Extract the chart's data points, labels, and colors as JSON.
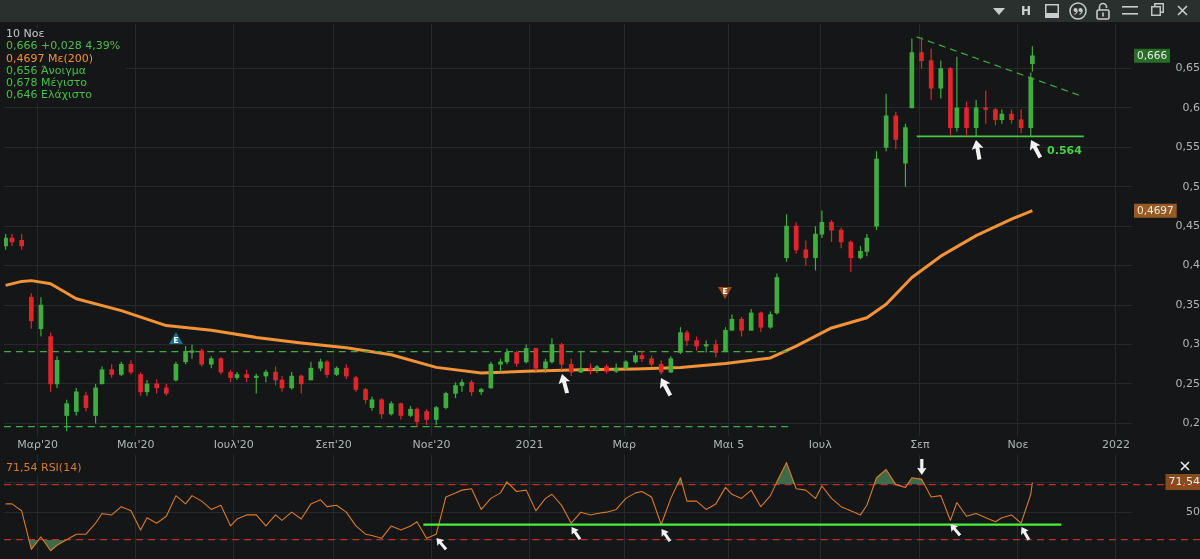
{
  "chart_data": [
    {
      "type": "candlestick",
      "x": [
        "2020-02-10",
        "2020-02-14",
        "2020-02-20",
        "2020-02-26",
        "2020-03-03",
        "2020-03-09",
        "2020-03-13",
        "2020-03-19",
        "2020-03-25",
        "2020-03-31",
        "2020-04-06",
        "2020-04-10",
        "2020-04-16",
        "2020-04-22",
        "2020-04-28",
        "2020-05-04",
        "2020-05-08",
        "2020-05-14",
        "2020-05-20",
        "2020-05-26",
        "2020-06-01",
        "2020-06-05",
        "2020-06-11",
        "2020-06-17",
        "2020-06-23",
        "2020-06-29",
        "2020-07-03",
        "2020-07-09",
        "2020-07-15",
        "2020-07-21",
        "2020-07-27",
        "2020-07-31",
        "2020-08-06",
        "2020-08-12",
        "2020-08-18",
        "2020-08-24",
        "2020-08-28",
        "2020-09-03",
        "2020-09-09",
        "2020-09-15",
        "2020-09-21",
        "2020-09-25",
        "2020-10-01",
        "2020-10-07",
        "2020-10-13",
        "2020-10-19",
        "2020-10-23",
        "2020-10-29",
        "2020-11-04",
        "2020-11-10",
        "2020-11-16",
        "2020-11-20",
        "2020-11-26",
        "2020-12-02",
        "2020-12-08",
        "2020-12-14",
        "2020-12-18",
        "2020-12-24",
        "2020-12-30",
        "2021-01-05",
        "2021-01-11",
        "2021-01-15",
        "2021-01-21",
        "2021-01-27",
        "2021-02-02",
        "2021-02-08",
        "2021-02-12",
        "2021-02-18",
        "2021-02-24",
        "2021-03-02",
        "2021-03-08",
        "2021-03-12",
        "2021-03-18",
        "2021-03-24",
        "2021-03-30",
        "2021-04-05",
        "2021-04-09",
        "2021-04-15",
        "2021-04-21",
        "2021-04-27",
        "2021-05-03",
        "2021-05-07",
        "2021-05-13",
        "2021-05-19",
        "2021-05-25",
        "2021-05-31",
        "2021-06-04",
        "2021-06-10",
        "2021-06-16",
        "2021-06-22",
        "2021-06-28",
        "2021-07-02",
        "2021-07-08",
        "2021-07-14",
        "2021-07-20",
        "2021-07-26",
        "2021-07-30",
        "2021-08-05",
        "2021-08-11",
        "2021-08-17",
        "2021-08-23",
        "2021-08-27",
        "2021-09-02",
        "2021-09-08",
        "2021-09-14",
        "2021-09-20",
        "2021-09-24",
        "2021-09-30",
        "2021-10-06",
        "2021-10-12",
        "2021-10-18",
        "2021-10-22",
        "2021-10-28",
        "2021-11-03",
        "2021-11-09",
        "2021-11-10"
      ],
      "ohlc": [
        [
          0.425,
          0.44,
          0.42,
          0.435
        ],
        [
          0.435,
          0.44,
          0.425,
          0.43
        ],
        [
          0.432,
          0.44,
          0.42,
          0.425
        ],
        [
          0.36,
          0.365,
          0.32,
          0.33
        ],
        [
          0.32,
          0.36,
          0.31,
          0.35
        ],
        [
          0.31,
          0.315,
          0.24,
          0.25
        ],
        [
          0.25,
          0.285,
          0.245,
          0.28
        ],
        [
          0.21,
          0.23,
          0.19,
          0.225
        ],
        [
          0.215,
          0.245,
          0.21,
          0.24
        ],
        [
          0.235,
          0.24,
          0.215,
          0.22
        ],
        [
          0.21,
          0.25,
          0.2,
          0.245
        ],
        [
          0.25,
          0.272,
          0.25,
          0.268
        ],
        [
          0.268,
          0.275,
          0.258,
          0.262
        ],
        [
          0.262,
          0.278,
          0.26,
          0.275
        ],
        [
          0.275,
          0.28,
          0.262,
          0.265
        ],
        [
          0.262,
          0.265,
          0.235,
          0.24
        ],
        [
          0.24,
          0.255,
          0.235,
          0.25
        ],
        [
          0.25,
          0.256,
          0.238,
          0.245
        ],
        [
          0.245,
          0.25,
          0.235,
          0.238
        ],
        [
          0.255,
          0.278,
          0.253,
          0.275
        ],
        [
          0.278,
          0.298,
          0.275,
          0.29
        ],
        [
          0.29,
          0.3,
          0.282,
          0.292
        ],
        [
          0.292,
          0.295,
          0.272,
          0.275
        ],
        [
          0.275,
          0.285,
          0.27,
          0.282
        ],
        [
          0.282,
          0.284,
          0.262,
          0.265
        ],
        [
          0.265,
          0.268,
          0.252,
          0.258
        ],
        [
          0.258,
          0.265,
          0.255,
          0.262
        ],
        [
          0.262,
          0.268,
          0.252,
          0.258
        ],
        [
          0.258,
          0.263,
          0.238,
          0.26
        ],
        [
          0.26,
          0.268,
          0.252,
          0.265
        ],
        [
          0.265,
          0.272,
          0.248,
          0.255
        ],
        [
          0.255,
          0.26,
          0.24,
          0.245
        ],
        [
          0.245,
          0.265,
          0.243,
          0.26
        ],
        [
          0.26,
          0.262,
          0.238,
          0.25
        ],
        [
          0.255,
          0.278,
          0.255,
          0.27
        ],
        [
          0.27,
          0.282,
          0.266,
          0.278
        ],
        [
          0.278,
          0.28,
          0.258,
          0.262
        ],
        [
          0.262,
          0.272,
          0.26,
          0.27
        ],
        [
          0.27,
          0.275,
          0.256,
          0.26
        ],
        [
          0.258,
          0.26,
          0.24,
          0.243
        ],
        [
          0.243,
          0.245,
          0.225,
          0.23
        ],
        [
          0.22,
          0.234,
          0.216,
          0.23
        ],
        [
          0.23,
          0.232,
          0.206,
          0.212
        ],
        [
          0.212,
          0.228,
          0.21,
          0.225
        ],
        [
          0.225,
          0.226,
          0.205,
          0.21
        ],
        [
          0.21,
          0.222,
          0.208,
          0.218
        ],
        [
          0.218,
          0.22,
          0.196,
          0.202
        ],
        [
          0.215,
          0.218,
          0.198,
          0.205
        ],
        [
          0.205,
          0.222,
          0.198,
          0.22
        ],
        [
          0.22,
          0.24,
          0.218,
          0.238
        ],
        [
          0.238,
          0.252,
          0.232,
          0.248
        ],
        [
          0.248,
          0.256,
          0.24,
          0.252
        ],
        [
          0.252,
          0.255,
          0.235,
          0.24
        ],
        [
          0.24,
          0.245,
          0.236,
          0.243
        ],
        [
          0.245,
          0.278,
          0.244,
          0.275
        ],
        [
          0.275,
          0.282,
          0.265,
          0.278
        ],
        [
          0.278,
          0.295,
          0.275,
          0.29
        ],
        [
          0.29,
          0.292,
          0.272,
          0.276
        ],
        [
          0.278,
          0.3,
          0.276,
          0.295
        ],
        [
          0.295,
          0.296,
          0.266,
          0.27
        ],
        [
          0.27,
          0.282,
          0.264,
          0.278
        ],
        [
          0.278,
          0.308,
          0.276,
          0.3
        ],
        [
          0.3,
          0.302,
          0.268,
          0.275
        ],
        [
          0.275,
          0.282,
          0.26,
          0.265
        ],
        [
          0.265,
          0.292,
          0.264,
          0.27
        ],
        [
          0.27,
          0.276,
          0.262,
          0.268
        ],
        [
          0.268,
          0.274,
          0.264,
          0.272
        ],
        [
          0.272,
          0.275,
          0.263,
          0.266
        ],
        [
          0.266,
          0.276,
          0.264,
          0.27
        ],
        [
          0.27,
          0.28,
          0.268,
          0.278
        ],
        [
          0.278,
          0.29,
          0.276,
          0.286
        ],
        [
          0.286,
          0.292,
          0.278,
          0.282
        ],
        [
          0.282,
          0.286,
          0.272,
          0.275
        ],
        [
          0.275,
          0.28,
          0.262,
          0.265
        ],
        [
          0.265,
          0.285,
          0.264,
          0.282
        ],
        [
          0.29,
          0.322,
          0.288,
          0.315
        ],
        [
          0.315,
          0.318,
          0.298,
          0.305
        ],
        [
          0.305,
          0.31,
          0.292,
          0.298
        ],
        [
          0.298,
          0.305,
          0.29,
          0.3
        ],
        [
          0.3,
          0.306,
          0.284,
          0.29
        ],
        [
          0.292,
          0.322,
          0.29,
          0.318
        ],
        [
          0.318,
          0.338,
          0.318,
          0.332
        ],
        [
          0.332,
          0.335,
          0.31,
          0.318
        ],
        [
          0.318,
          0.345,
          0.318,
          0.34
        ],
        [
          0.34,
          0.342,
          0.316,
          0.322
        ],
        [
          0.322,
          0.342,
          0.32,
          0.338
        ],
        [
          0.34,
          0.39,
          0.338,
          0.385
        ],
        [
          0.41,
          0.465,
          0.405,
          0.45
        ],
        [
          0.45,
          0.455,
          0.415,
          0.42
        ],
        [
          0.42,
          0.432,
          0.4,
          0.41
        ],
        [
          0.41,
          0.45,
          0.394,
          0.44
        ],
        [
          0.44,
          0.47,
          0.435,
          0.455
        ],
        [
          0.455,
          0.458,
          0.43,
          0.445
        ],
        [
          0.445,
          0.448,
          0.422,
          0.43
        ],
        [
          0.43,
          0.432,
          0.392,
          0.41
        ],
        [
          0.41,
          0.425,
          0.408,
          0.418
        ],
        [
          0.418,
          0.44,
          0.412,
          0.435
        ],
        [
          0.45,
          0.545,
          0.445,
          0.535
        ],
        [
          0.55,
          0.618,
          0.545,
          0.59
        ],
        [
          0.59,
          0.595,
          0.548,
          0.56
        ],
        [
          0.53,
          0.58,
          0.5,
          0.575
        ],
        [
          0.6,
          0.688,
          0.6,
          0.67
        ],
        [
          0.67,
          0.69,
          0.65,
          0.66
        ],
        [
          0.66,
          0.675,
          0.61,
          0.625
        ],
        [
          0.625,
          0.66,
          0.612,
          0.65
        ],
        [
          0.65,
          0.652,
          0.565,
          0.575
        ],
        [
          0.575,
          0.665,
          0.57,
          0.6
        ],
        [
          0.6,
          0.608,
          0.565,
          0.575
        ],
        [
          0.575,
          0.61,
          0.564,
          0.6
        ],
        [
          0.6,
          0.622,
          0.58,
          0.598
        ],
        [
          0.598,
          0.6,
          0.578,
          0.585
        ],
        [
          0.585,
          0.598,
          0.58,
          0.592
        ],
        [
          0.592,
          0.598,
          0.58,
          0.585
        ],
        [
          0.585,
          0.598,
          0.568,
          0.575
        ],
        [
          0.575,
          0.645,
          0.564,
          0.638
        ],
        [
          0.656,
          0.678,
          0.646,
          0.666
        ]
      ],
      "colors": [
        "#3fae3f",
        "#e0262b",
        "#e0262b",
        "#e0262b",
        "#3fae3f",
        "#e0262b",
        "#3fae3f",
        "#3fae3f",
        "#3fae3f",
        "#e0262b",
        "#3fae3f",
        "#3fae3f",
        "#e0262b",
        "#3fae3f",
        "#e0262b",
        "#e0262b",
        "#3fae3f",
        "#e0262b",
        "#e0262b",
        "#3fae3f",
        "#3fae3f",
        "#3fae3f",
        "#e0262b",
        "#3fae3f",
        "#e0262b",
        "#e0262b",
        "#3fae3f",
        "#e0262b",
        "#3fae3f",
        "#3fae3f",
        "#e0262b",
        "#e0262b",
        "#3fae3f",
        "#e0262b",
        "#3fae3f",
        "#3fae3f",
        "#e0262b",
        "#3fae3f",
        "#e0262b",
        "#e0262b",
        "#e0262b",
        "#3fae3f",
        "#e0262b",
        "#3fae3f",
        "#e0262b",
        "#3fae3f",
        "#e0262b",
        "#e0262b",
        "#3fae3f",
        "#3fae3f",
        "#3fae3f",
        "#3fae3f",
        "#e0262b",
        "#3fae3f",
        "#3fae3f",
        "#3fae3f",
        "#3fae3f",
        "#e0262b",
        "#3fae3f",
        "#e0262b",
        "#3fae3f",
        "#3fae3f",
        "#e0262b",
        "#e0262b",
        "#3fae3f",
        "#e0262b",
        "#3fae3f",
        "#e0262b",
        "#3fae3f",
        "#3fae3f",
        "#3fae3f",
        "#e0262b",
        "#e0262b",
        "#e0262b",
        "#3fae3f",
        "#3fae3f",
        "#e0262b",
        "#e0262b",
        "#3fae3f",
        "#e0262b",
        "#3fae3f",
        "#3fae3f",
        "#e0262b",
        "#3fae3f",
        "#e0262b",
        "#3fae3f",
        "#3fae3f",
        "#3fae3f",
        "#e0262b",
        "#e0262b",
        "#3fae3f",
        "#3fae3f",
        "#e0262b",
        "#e0262b",
        "#e0262b",
        "#3fae3f",
        "#3fae3f",
        "#3fae3f",
        "#3fae3f",
        "#e0262b",
        "#3fae3f",
        "#3fae3f",
        "#e0262b",
        "#e0262b",
        "#3fae3f",
        "#e0262b",
        "#3fae3f",
        "#e0262b",
        "#3fae3f",
        "#e0262b",
        "#e0262b",
        "#3fae3f",
        "#e0262b",
        "#e0262b",
        "#3fae3f",
        "#3fae3f"
      ],
      "series": [
        {
          "type": "line",
          "color": "#f39237",
          "x": [
            "2020-02-10",
            "2020-02-20",
            "2020-02-26",
            "2020-03-09",
            "2020-03-25",
            "2020-04-22",
            "2020-05-20",
            "2020-06-17",
            "2020-07-15",
            "2020-08-12",
            "2020-09-09",
            "2020-10-07",
            "2020-11-04",
            "2020-12-02",
            "2020-12-30",
            "2021-02-02",
            "2021-03-08",
            "2021-04-05",
            "2021-05-03",
            "2021-05-31",
            "2021-06-16",
            "2021-07-08",
            "2021-07-30",
            "2021-08-11",
            "2021-08-27",
            "2021-09-14",
            "2021-10-06",
            "2021-10-28",
            "2021-11-10"
          ],
          "values": [
            0.375,
            0.38,
            0.381,
            0.377,
            0.358,
            0.343,
            0.324,
            0.318,
            0.309,
            0.302,
            0.296,
            0.287,
            0.271,
            0.264,
            0.266,
            0.268,
            0.269,
            0.271,
            0.276,
            0.283,
            0.298,
            0.321,
            0.334,
            0.351,
            0.385,
            0.412,
            0.438,
            0.459,
            0.4697
          ]
        },
        {
          "type": "line",
          "color": "#3fae3f",
          "line_style": "dashed",
          "x": [
            "2020-02-09",
            "2021-06-11"
          ],
          "values": [
            0.291,
            0.291
          ]
        },
        {
          "type": "line",
          "color": "#3fae3f",
          "line_style": "dashed",
          "x": [
            "2020-02-09",
            "2021-06-11"
          ],
          "values": [
            0.196,
            0.196
          ]
        },
        {
          "type": "line",
          "color": "#3fae3f",
          "line_style": "dashed",
          "x": [
            "2021-08-30",
            "2021-12-09"
          ],
          "values": [
            0.69,
            0.616
          ]
        },
        {
          "type": "line",
          "color": "#46c846",
          "x": [
            "2021-08-30",
            "2021-12-12"
          ],
          "values": [
            0.564,
            0.564
          ]
        }
      ],
      "xlim": [
        "2020-02-09",
        "2022-01-11"
      ],
      "xticks": [
        {
          "value": "2020-03-01",
          "label": "Μαρ'20"
        },
        {
          "value": "2020-05-01",
          "label": "Μαι'20"
        },
        {
          "value": "2020-07-01",
          "label": "Ιουλ'20"
        },
        {
          "value": "2020-09-01",
          "label": "Σεπ'20"
        },
        {
          "value": "2020-11-01",
          "label": "Νοε'20"
        },
        {
          "value": "2021-01-01",
          "label": "2021"
        },
        {
          "value": "2021-03-01",
          "label": "Μαρ"
        },
        {
          "value": "2021-05-05",
          "label": "Μαι 5"
        },
        {
          "value": "2021-07-01",
          "label": "Ιουλ"
        },
        {
          "value": "2021-09-01",
          "label": "Σεπ"
        },
        {
          "value": "2021-11-01",
          "label": "Νοε"
        },
        {
          "value": "2022-01-01",
          "label": "2022"
        }
      ],
      "ylim": [
        0.184,
        0.707
      ],
      "yticks": [
        {
          "value": 0.2,
          "label": "0,2"
        },
        {
          "value": 0.25,
          "label": "0,25"
        },
        {
          "value": 0.3,
          "label": "0,3"
        },
        {
          "value": 0.35,
          "label": "0,35"
        },
        {
          "value": 0.4,
          "label": "0,4"
        },
        {
          "value": 0.45,
          "label": "0,45"
        },
        {
          "value": 0.5,
          "label": "0,5"
        },
        {
          "value": 0.55,
          "label": "0,55"
        },
        {
          "value": 0.6,
          "label": "0,6"
        },
        {
          "value": 0.65,
          "label": "0,65"
        }
      ],
      "grid": true,
      "annotations": [
        "10 Νοε",
        "0,666 +0,028 4,39%",
        "0,4697 Με(200)",
        "0,656 Άνοιγμα",
        "0,678 Μέγιστο",
        "0,646 Ελάχιστο",
        "H",
        {
          "text": "0.564",
          "x": "2021-11-30",
          "y": 0.564
        },
        "0,666",
        "0,4697"
      ]
    },
    {
      "type": "line",
      "x": [
        "2020-02-10",
        "2020-02-14",
        "2020-02-20",
        "2020-02-26",
        "2020-03-03",
        "2020-03-09",
        "2020-03-13",
        "2020-03-19",
        "2020-03-25",
        "2020-03-31",
        "2020-04-06",
        "2020-04-10",
        "2020-04-16",
        "2020-04-22",
        "2020-04-28",
        "2020-05-04",
        "2020-05-08",
        "2020-05-14",
        "2020-05-20",
        "2020-05-26",
        "2020-06-01",
        "2020-06-05",
        "2020-06-11",
        "2020-06-17",
        "2020-06-23",
        "2020-06-29",
        "2020-07-03",
        "2020-07-09",
        "2020-07-15",
        "2020-07-21",
        "2020-07-27",
        "2020-07-31",
        "2020-08-06",
        "2020-08-12",
        "2020-08-18",
        "2020-08-24",
        "2020-08-28",
        "2020-09-03",
        "2020-09-09",
        "2020-09-15",
        "2020-09-21",
        "2020-09-25",
        "2020-10-01",
        "2020-10-07",
        "2020-10-13",
        "2020-10-19",
        "2020-10-23",
        "2020-10-29",
        "2020-11-04",
        "2020-11-10",
        "2020-11-16",
        "2020-11-20",
        "2020-11-26",
        "2020-12-02",
        "2020-12-08",
        "2020-12-14",
        "2020-12-18",
        "2020-12-24",
        "2020-12-30",
        "2021-01-05",
        "2021-01-11",
        "2021-01-15",
        "2021-01-21",
        "2021-01-27",
        "2021-02-02",
        "2021-02-08",
        "2021-02-12",
        "2021-02-18",
        "2021-02-24",
        "2021-03-02",
        "2021-03-08",
        "2021-03-12",
        "2021-03-18",
        "2021-03-24",
        "2021-03-30",
        "2021-04-05",
        "2021-04-09",
        "2021-04-15",
        "2021-04-21",
        "2021-04-27",
        "2021-05-03",
        "2021-05-07",
        "2021-05-13",
        "2021-05-19",
        "2021-05-25",
        "2021-05-31",
        "2021-06-04",
        "2021-06-10",
        "2021-06-16",
        "2021-06-22",
        "2021-06-28",
        "2021-07-02",
        "2021-07-08",
        "2021-07-14",
        "2021-07-20",
        "2021-07-26",
        "2021-07-30",
        "2021-08-05",
        "2021-08-11",
        "2021-08-17",
        "2021-08-23",
        "2021-08-27",
        "2021-09-02",
        "2021-09-08",
        "2021-09-14",
        "2021-09-20",
        "2021-09-24",
        "2021-09-30",
        "2021-10-06",
        "2021-10-12",
        "2021-10-18",
        "2021-10-22",
        "2021-10-28",
        "2021-11-03",
        "2021-11-09",
        "2021-11-10"
      ],
      "series": [
        {
          "color": "#d97a2c",
          "values": [
            56,
            56,
            51,
            23,
            32,
            22,
            26,
            30,
            34,
            34,
            42,
            49,
            48,
            54,
            51,
            37,
            46,
            42,
            47,
            62,
            56,
            62,
            58,
            52,
            55,
            40,
            45,
            48,
            48,
            40,
            48,
            44,
            50,
            45,
            56,
            59,
            54,
            55,
            50,
            40,
            34,
            33,
            31,
            40,
            37,
            40,
            43,
            31,
            34,
            61,
            64,
            66,
            67,
            52,
            60,
            64,
            72,
            65,
            66,
            51,
            60,
            63,
            55,
            42,
            50,
            48,
            49,
            50,
            52,
            60,
            64,
            65,
            61,
            41,
            60,
            75,
            58,
            58,
            52,
            56,
            68,
            63,
            60,
            66,
            54,
            62,
            72,
            86,
            67,
            66,
            60,
            69,
            60,
            54,
            51,
            48,
            55,
            75,
            81,
            70,
            68,
            75,
            74,
            61,
            62,
            44,
            57,
            47,
            49,
            46,
            43,
            46,
            48,
            42,
            63,
            71.54
          ]
        },
        {
          "color": "#4cef3c",
          "x": [
            "2020-10-27",
            "2021-11-28"
          ],
          "values": [
            41,
            41
          ]
        }
      ],
      "ref_lines": [
        {
          "axis": "y",
          "value": 70,
          "color": "#c0302c",
          "line_style": "dashed"
        },
        {
          "axis": "y",
          "value": 30,
          "color": "#c0302c",
          "line_style": "dashed"
        }
      ],
      "xlim": [
        "2020-02-09",
        "2022-01-11"
      ],
      "xticks": [
        {
          "value": "2020-03-01",
          "label": null
        },
        {
          "value": "2020-05-01",
          "label": null
        },
        {
          "value": "2020-07-01",
          "label": null
        },
        {
          "value": "2020-09-01",
          "label": null
        },
        {
          "value": "2020-11-01",
          "label": null
        },
        {
          "value": "2021-01-01",
          "label": null
        },
        {
          "value": "2021-03-01",
          "label": null
        },
        {
          "value": "2021-05-05",
          "label": null
        },
        {
          "value": "2021-07-01",
          "label": null
        },
        {
          "value": "2021-09-01",
          "label": null
        },
        {
          "value": "2021-11-01",
          "label": null
        },
        {
          "value": "2022-01-01",
          "label": null
        }
      ],
      "ylim": [
        16,
        91.5
      ],
      "yticks": [
        50,
        {
          "value": 71.54,
          "label": "71,54"
        }
      ],
      "grid": true,
      "tick_labels": "y",
      "annotations": [
        "71,54 RSI(14)"
      ]
    }
  ]
}
